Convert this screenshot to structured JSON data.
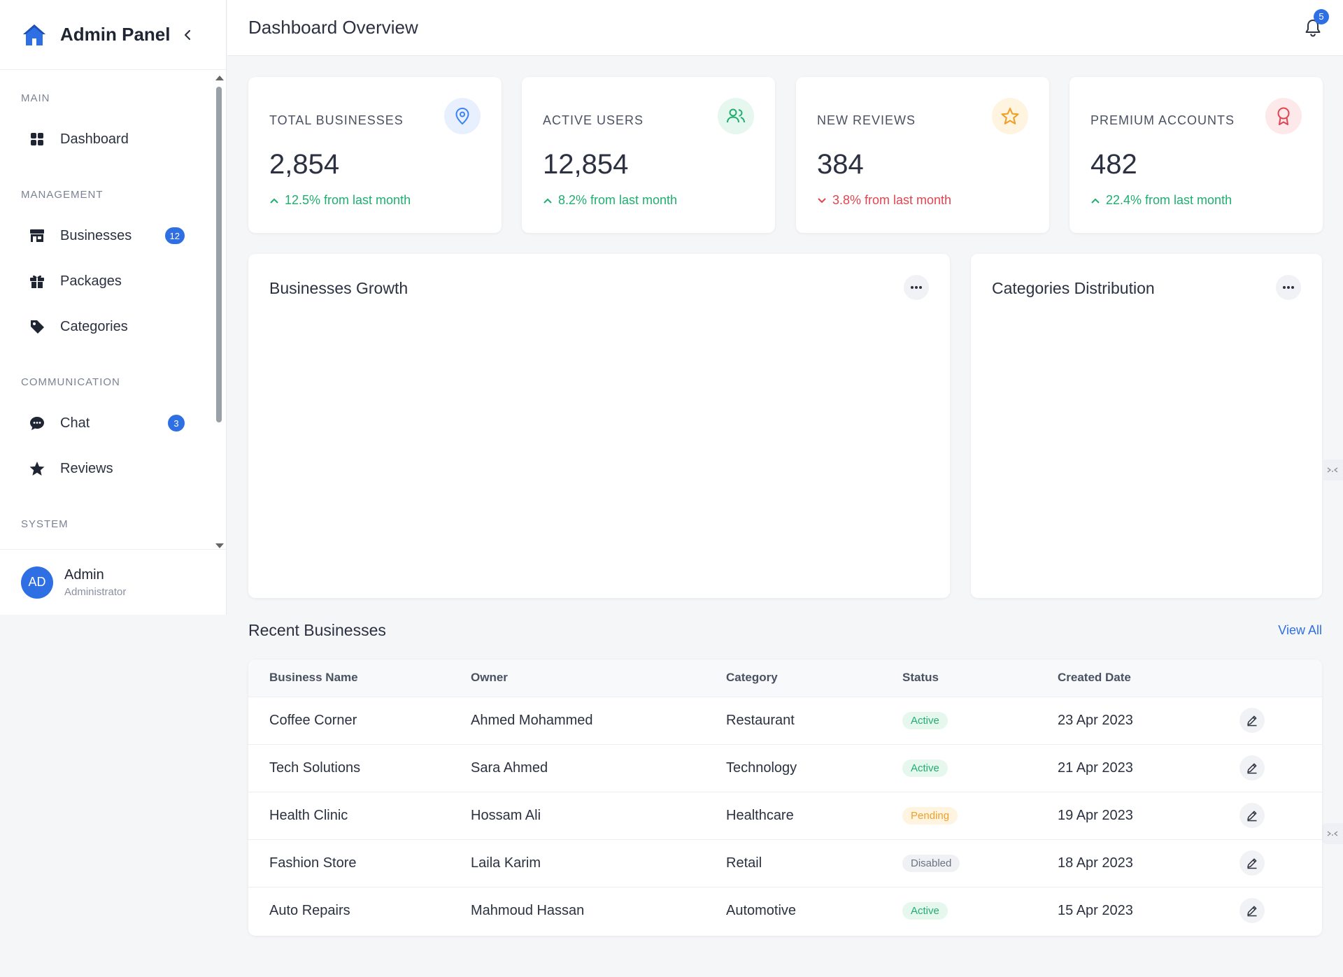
{
  "sidebar": {
    "title": "Admin Panel",
    "sections": {
      "main": "MAIN",
      "management": "MANAGEMENT",
      "communication": "COMMUNICATION",
      "system": "SYSTEM"
    },
    "items": {
      "dashboard": {
        "label": "Dashboard",
        "icon": "grid-icon"
      },
      "businesses": {
        "label": "Businesses",
        "icon": "store-icon",
        "badge": "12"
      },
      "packages": {
        "label": "Packages",
        "icon": "gift-icon"
      },
      "categories": {
        "label": "Categories",
        "icon": "tag-icon"
      },
      "chat": {
        "label": "Chat",
        "icon": "chat-icon",
        "badge": "3"
      },
      "reviews": {
        "label": "Reviews",
        "icon": "star-icon"
      }
    },
    "user": {
      "initials": "AD",
      "name": "Admin",
      "role": "Administrator"
    }
  },
  "header": {
    "title": "Dashboard Overview",
    "notification_count": "5"
  },
  "stats": [
    {
      "title": "TOTAL BUSINESSES",
      "value": "2,854",
      "change": "12.5% from last month",
      "direction": "up",
      "icon": "location-pin-icon",
      "icon_color": "#3b82f6",
      "icon_bg": "#e8f0fd"
    },
    {
      "title": "ACTIVE USERS",
      "value": "12,854",
      "change": "8.2% from last month",
      "direction": "up",
      "icon": "users-icon",
      "icon_color": "#1fae70",
      "icon_bg": "#e5f7ef"
    },
    {
      "title": "NEW REVIEWS",
      "value": "384",
      "change": "3.8% from last month",
      "direction": "down",
      "icon": "star-outline-icon",
      "icon_color": "#f0a02a",
      "icon_bg": "#fff4e0"
    },
    {
      "title": "PREMIUM ACCOUNTS",
      "value": "482",
      "change": "22.4% from last month",
      "direction": "up",
      "icon": "award-icon",
      "icon_color": "#e0454f",
      "icon_bg": "#fde8ea"
    }
  ],
  "panels": {
    "growth": {
      "title": "Businesses Growth"
    },
    "distribution": {
      "title": "Categories Distribution"
    }
  },
  "recent": {
    "title": "Recent Businesses",
    "view_all": "View All",
    "columns": [
      "Business Name",
      "Owner",
      "Category",
      "Status",
      "Created Date"
    ],
    "rows": [
      {
        "name": "Coffee Corner",
        "owner": "Ahmed Mohammed",
        "category": "Restaurant",
        "status": "Active",
        "status_type": "active",
        "date": "23 Apr 2023"
      },
      {
        "name": "Tech Solutions",
        "owner": "Sara Ahmed",
        "category": "Technology",
        "status": "Active",
        "status_type": "active",
        "date": "21 Apr 2023"
      },
      {
        "name": "Health Clinic",
        "owner": "Hossam Ali",
        "category": "Healthcare",
        "status": "Pending",
        "status_type": "pending",
        "date": "19 Apr 2023"
      },
      {
        "name": "Fashion Store",
        "owner": "Laila Karim",
        "category": "Retail",
        "status": "Disabled",
        "status_type": "disabled",
        "date": "18 Apr 2023"
      },
      {
        "name": "Auto Repairs",
        "owner": "Mahmoud Hassan",
        "category": "Automotive",
        "status": "Active",
        "status_type": "active",
        "date": "15 Apr 2023"
      }
    ]
  },
  "colors": {
    "accent": "#2f6fe4",
    "positive": "#1fae70",
    "negative": "#e0454f",
    "warning": "#f0a02a"
  }
}
